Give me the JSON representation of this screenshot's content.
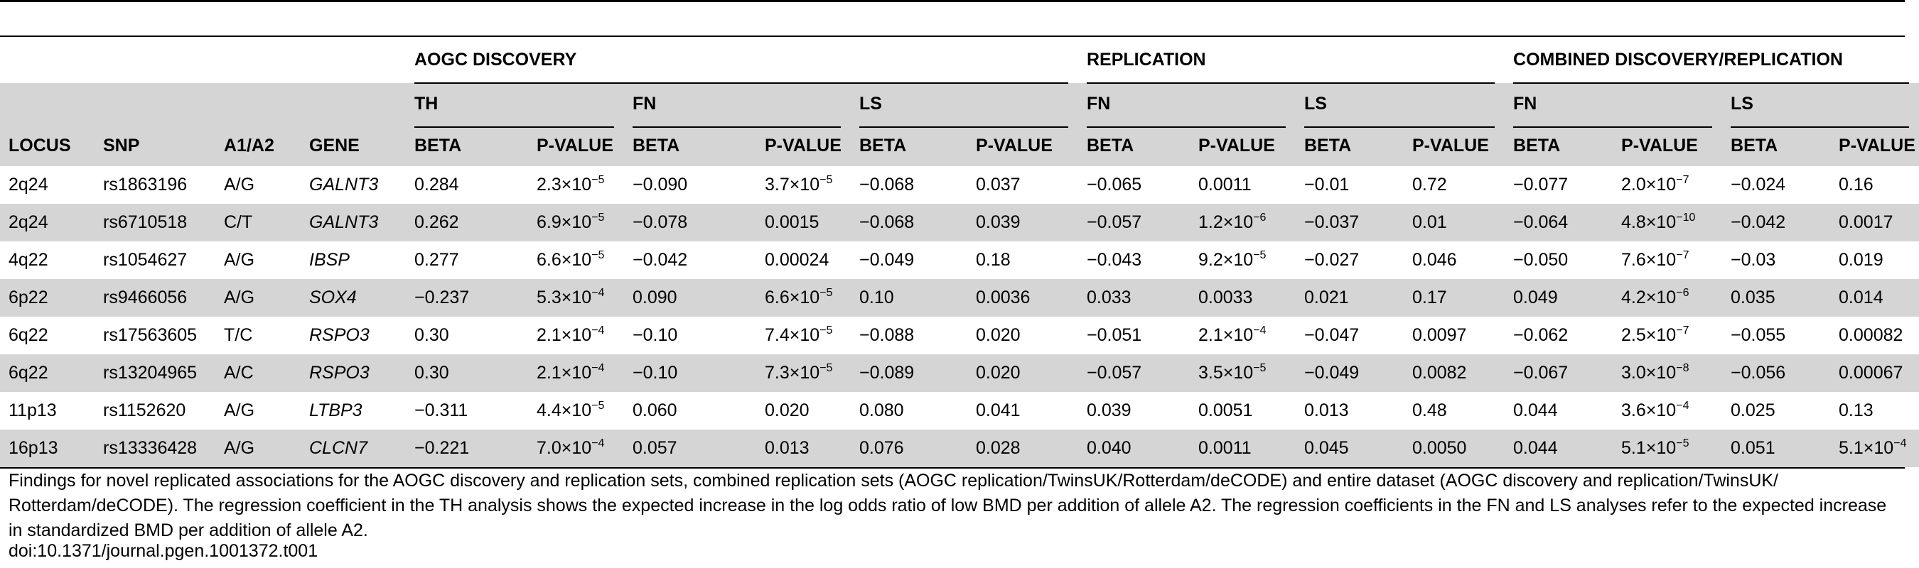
{
  "group_headers": [
    "AOGC DISCOVERY",
    "REPLICATION",
    "COMBINED DISCOVERY/REPLICATION"
  ],
  "sub_headers": [
    "TH",
    "FN",
    "LS",
    "FN",
    "LS",
    "FN",
    "LS"
  ],
  "columns": [
    "LOCUS",
    "SNP",
    "A1/A2",
    "GENE",
    "BETA",
    "P-VALUE",
    "BETA",
    "P-VALUE",
    "BETA",
    "P-VALUE",
    "BETA",
    "P-VALUE",
    "BETA",
    "P-VALUE",
    "BETA",
    "P-VALUE",
    "BETA",
    "P-VALUE"
  ],
  "rows": [
    [
      "2q24",
      "rs1863196",
      "A/G",
      "GALNT3",
      "0.284",
      [
        "2.3",
        "−5"
      ],
      "−0.090",
      [
        "3.7",
        "−5"
      ],
      "−0.068",
      "0.037",
      "−0.065",
      "0.0011",
      "−0.01",
      "0.72",
      "−0.077",
      [
        "2.0",
        "−7"
      ],
      "−0.024",
      "0.16"
    ],
    [
      "2q24",
      "rs6710518",
      "C/T",
      "GALNT3",
      "0.262",
      [
        "6.9",
        "−5"
      ],
      "−0.078",
      "0.0015",
      "−0.068",
      "0.039",
      "−0.057",
      [
        "1.2",
        "−6"
      ],
      "−0.037",
      "0.01",
      "−0.064",
      [
        "4.8",
        "−10"
      ],
      "−0.042",
      "0.0017"
    ],
    [
      "4q22",
      "rs1054627",
      "A/G",
      "IBSP",
      "0.277",
      [
        "6.6",
        "−5"
      ],
      "−0.042",
      "0.00024",
      "−0.049",
      "0.18",
      "−0.043",
      [
        "9.2",
        "−5"
      ],
      "−0.027",
      "0.046",
      "−0.050",
      [
        "7.6",
        "−7"
      ],
      "−0.03",
      "0.019"
    ],
    [
      "6p22",
      "rs9466056",
      "A/G",
      "SOX4",
      "−0.237",
      [
        "5.3",
        "−4"
      ],
      "0.090",
      [
        "6.6",
        "−5"
      ],
      "0.10",
      "0.0036",
      "0.033",
      "0.0033",
      "0.021",
      "0.17",
      "0.049",
      [
        "4.2",
        "−6"
      ],
      "0.035",
      "0.014"
    ],
    [
      "6q22",
      "rs17563605",
      "T/C",
      "RSPO3",
      "0.30",
      [
        "2.1",
        "−4"
      ],
      "−0.10",
      [
        "7.4",
        "−5"
      ],
      "−0.088",
      "0.020",
      "−0.051",
      [
        "2.1",
        "−4"
      ],
      "−0.047",
      "0.0097",
      "−0.062",
      [
        "2.5",
        "−7"
      ],
      "−0.055",
      "0.00082"
    ],
    [
      "6q22",
      "rs13204965",
      "A/C",
      "RSPO3",
      "0.30",
      [
        "2.1",
        "−4"
      ],
      "−0.10",
      [
        "7.3",
        "−5"
      ],
      "−0.089",
      "0.020",
      "−0.057",
      [
        "3.5",
        "−5"
      ],
      "−0.049",
      "0.0082",
      "−0.067",
      [
        "3.0",
        "−8"
      ],
      "−0.056",
      "0.00067"
    ],
    [
      "11p13",
      "rs1152620",
      "A/G",
      "LTBP3",
      "−0.311",
      [
        "4.4",
        "−5"
      ],
      "0.060",
      "0.020",
      "0.080",
      "0.041",
      "0.039",
      "0.0051",
      "0.013",
      "0.48",
      "0.044",
      [
        "3.6",
        "−4"
      ],
      "0.025",
      "0.13"
    ],
    [
      "16p13",
      "rs13336428",
      "A/G",
      "CLCN7",
      "−0.221",
      [
        "7.0",
        "−4"
      ],
      "0.057",
      "0.013",
      "0.076",
      "0.028",
      "0.040",
      "0.0011",
      "0.045",
      "0.0050",
      "0.044",
      [
        "5.1",
        "−5"
      ],
      "0.051",
      [
        "5.1",
        "−4"
      ]
    ]
  ],
  "footnote": "Findings for novel replicated associations for the AOGC discovery and replication sets, combined replication sets (AOGC replication/TwinsUK/Rotterdam/deCODE) and entire dataset (AOGC discovery and replication/TwinsUK/ Rotterdam/deCODE). The regression coefficient in the TH analysis shows the expected increase in the log odds ratio of low BMD per addition of allele A2. The regression coefficients in the FN and LS analyses refer to the expected increase in standardized BMD per addition of allele A2.",
  "doi": "doi:10.1371/journal.pgen.1001372.t001"
}
